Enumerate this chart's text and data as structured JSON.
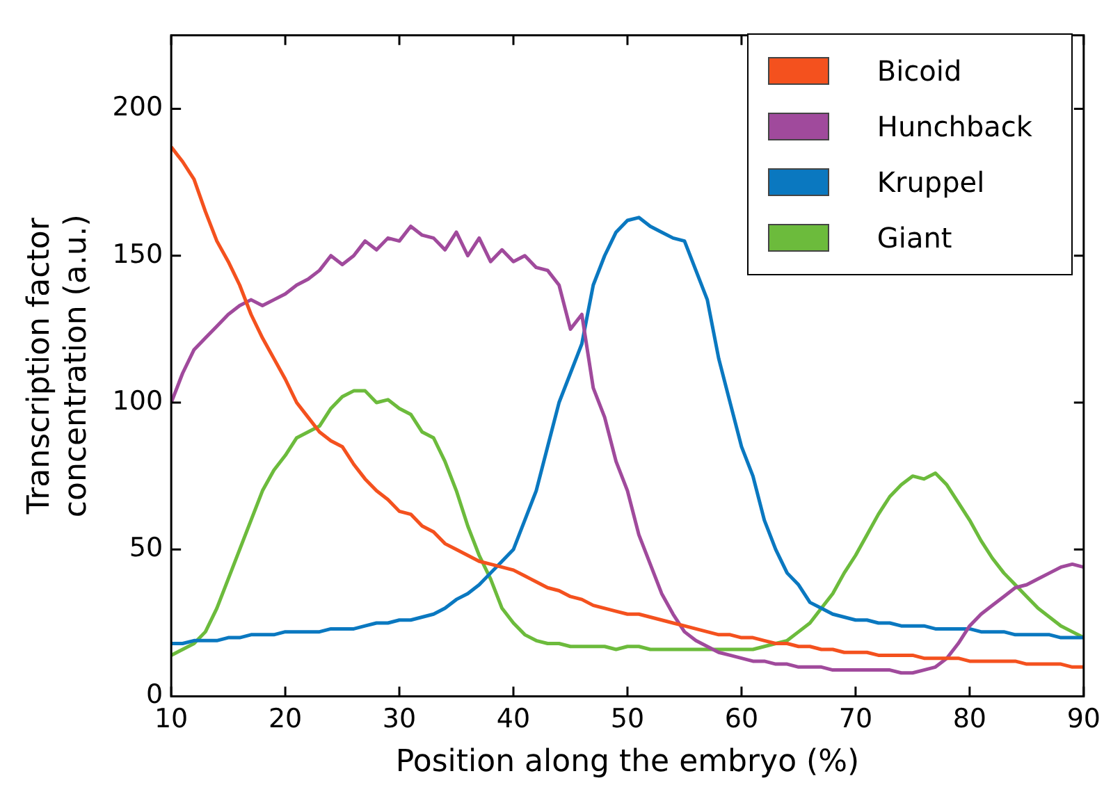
{
  "chart_data": {
    "type": "line",
    "xlabel": "Position along the embryo (%)",
    "ylabel": "Transcription factor concentration (a.u.)",
    "x": [
      10,
      11,
      12,
      13,
      14,
      15,
      16,
      17,
      18,
      19,
      20,
      21,
      22,
      23,
      24,
      25,
      26,
      27,
      28,
      29,
      30,
      31,
      32,
      33,
      34,
      35,
      36,
      37,
      38,
      39,
      40,
      41,
      42,
      43,
      44,
      45,
      46,
      47,
      48,
      49,
      50,
      51,
      52,
      53,
      54,
      55,
      56,
      57,
      58,
      59,
      60,
      61,
      62,
      63,
      64,
      65,
      66,
      67,
      68,
      69,
      70,
      71,
      72,
      73,
      74,
      75,
      76,
      77,
      78,
      79,
      80,
      81,
      82,
      83,
      84,
      85,
      86,
      87,
      88,
      89,
      90
    ],
    "series": [
      {
        "name": "Bicoid",
        "color": "#f4511e",
        "values": [
          187,
          182,
          176,
          165,
          155,
          148,
          140,
          130,
          122,
          115,
          108,
          100,
          95,
          90,
          87,
          85,
          79,
          74,
          70,
          67,
          63,
          62,
          58,
          56,
          52,
          50,
          48,
          46,
          45,
          44,
          43,
          41,
          39,
          37,
          36,
          34,
          33,
          31,
          30,
          29,
          28,
          28,
          27,
          26,
          25,
          24,
          23,
          22,
          21,
          21,
          20,
          20,
          19,
          18,
          18,
          17,
          17,
          16,
          16,
          15,
          15,
          15,
          14,
          14,
          14,
          14,
          13,
          13,
          13,
          13,
          12,
          12,
          12,
          12,
          12,
          11,
          11,
          11,
          11,
          10,
          10
        ]
      },
      {
        "name": "Hunchback",
        "color": "#a04a9c",
        "values": [
          100,
          110,
          118,
          122,
          126,
          130,
          133,
          135,
          133,
          135,
          137,
          140,
          142,
          145,
          150,
          147,
          150,
          155,
          152,
          156,
          155,
          160,
          157,
          156,
          152,
          158,
          150,
          156,
          148,
          152,
          148,
          150,
          146,
          145,
          140,
          125,
          130,
          105,
          95,
          80,
          70,
          55,
          45,
          35,
          28,
          22,
          19,
          17,
          15,
          14,
          13,
          12,
          12,
          11,
          11,
          10,
          10,
          10,
          9,
          9,
          9,
          9,
          9,
          9,
          8,
          8,
          9,
          10,
          13,
          18,
          24,
          28,
          31,
          34,
          37,
          38,
          40,
          42,
          44,
          45,
          44
        ]
      },
      {
        "name": "Kruppel",
        "color": "#0a78c0",
        "values": [
          18,
          18,
          19,
          19,
          19,
          20,
          20,
          21,
          21,
          21,
          22,
          22,
          22,
          22,
          23,
          23,
          23,
          24,
          25,
          25,
          26,
          26,
          27,
          28,
          30,
          33,
          35,
          38,
          42,
          46,
          50,
          60,
          70,
          85,
          100,
          110,
          120,
          140,
          150,
          158,
          162,
          163,
          160,
          158,
          156,
          155,
          145,
          135,
          115,
          100,
          85,
          75,
          60,
          50,
          42,
          38,
          32,
          30,
          28,
          27,
          26,
          26,
          25,
          25,
          24,
          24,
          24,
          23,
          23,
          23,
          23,
          22,
          22,
          22,
          21,
          21,
          21,
          21,
          20,
          20,
          20
        ]
      },
      {
        "name": "Giant",
        "color": "#6cbb3c",
        "values": [
          14,
          16,
          18,
          22,
          30,
          40,
          50,
          60,
          70,
          77,
          82,
          88,
          90,
          92,
          98,
          102,
          104,
          104,
          100,
          101,
          98,
          96,
          90,
          88,
          80,
          70,
          58,
          48,
          40,
          30,
          25,
          21,
          19,
          18,
          18,
          17,
          17,
          17,
          17,
          16,
          17,
          17,
          16,
          16,
          16,
          16,
          16,
          16,
          16,
          16,
          16,
          16,
          17,
          18,
          19,
          22,
          25,
          30,
          35,
          42,
          48,
          55,
          62,
          68,
          72,
          75,
          74,
          76,
          72,
          66,
          60,
          53,
          47,
          42,
          38,
          34,
          30,
          27,
          24,
          22,
          20
        ]
      }
    ],
    "xlim": [
      10,
      90
    ],
    "xticks": [
      10,
      20,
      30,
      40,
      50,
      60,
      70,
      80,
      90
    ],
    "ylim": [
      0,
      225
    ],
    "yticks": [
      0,
      50,
      100,
      150,
      200
    ],
    "grid": false,
    "legend": "top right",
    "marker": "none",
    "line_style": "solid"
  }
}
